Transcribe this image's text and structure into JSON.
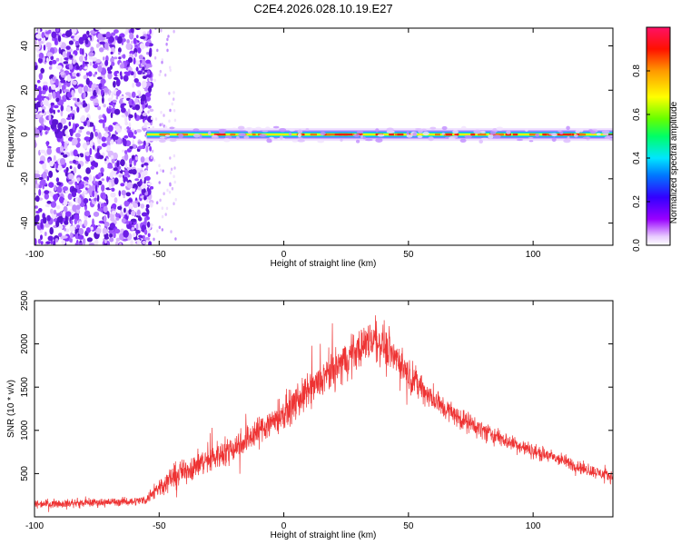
{
  "figure": {
    "title": "C2E4.2026.028.10.19.E27"
  },
  "chart_data": [
    {
      "type": "heatmap",
      "name": "spectrogram",
      "xlabel": "Height of straight line (km)",
      "ylabel": "Frequency (Hz)",
      "xlim": [
        -100,
        132
      ],
      "ylim": [
        -50,
        48
      ],
      "x_ticks": [
        -100,
        -50,
        0,
        50,
        100
      ],
      "y_ticks": [
        -40,
        -20,
        0,
        20,
        40
      ],
      "noise_region_x": [
        -100,
        -55
      ],
      "signal_start_x": -55,
      "signal_line_frequency": 0,
      "colorbar": {
        "label": "Normalized spectral amplitude",
        "range": [
          0,
          1
        ],
        "ticks": [
          0.0,
          0.2,
          0.4,
          0.6,
          0.8
        ]
      }
    },
    {
      "type": "line",
      "name": "snr",
      "xlabel": "Height of straight line (km)",
      "ylabel": "SNR (10 * v/v)",
      "xlim": [
        -100,
        132
      ],
      "ylim": [
        0,
        2500
      ],
      "x_ticks": [
        -100,
        -50,
        0,
        50,
        100
      ],
      "y_ticks": [
        500,
        1000,
        1500,
        2000,
        2500
      ],
      "color": "#ee3333",
      "envelope": {
        "x": [
          -100,
          -80,
          -60,
          -55,
          -52,
          -45,
          -35,
          -20,
          -10,
          0,
          10,
          20,
          30,
          35,
          40,
          45,
          50,
          60,
          70,
          80,
          90,
          100,
          110,
          120,
          132
        ],
        "mean": [
          150,
          160,
          180,
          200,
          300,
          450,
          600,
          800,
          1000,
          1200,
          1450,
          1700,
          1950,
          2050,
          2000,
          1850,
          1650,
          1350,
          1150,
          1000,
          870,
          760,
          670,
          560,
          460
        ],
        "spread": [
          70,
          70,
          70,
          80,
          150,
          200,
          230,
          250,
          260,
          280,
          300,
          320,
          330,
          340,
          330,
          300,
          260,
          220,
          180,
          160,
          140,
          130,
          120,
          110,
          100
        ]
      }
    }
  ]
}
